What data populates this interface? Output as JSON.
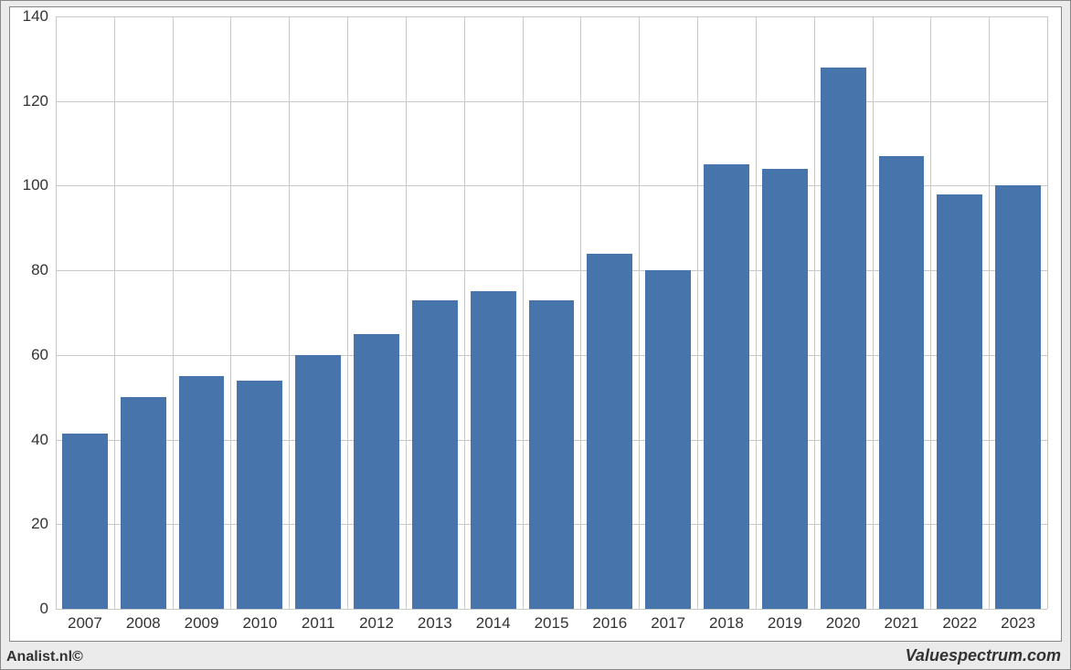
{
  "chart": {
    "type": "bar",
    "background_color": "#ebebeb",
    "plot_background_color": "#ffffff",
    "grid_color": "#c9c9c9",
    "border_color": "#888888",
    "bar_color": "#4674ab",
    "label_color": "#333333",
    "label_fontsize": 17,
    "ylim": [
      0,
      140
    ],
    "ytick_step": 20,
    "yticks": [
      0,
      20,
      40,
      60,
      80,
      100,
      120,
      140
    ],
    "categories": [
      "2007",
      "2008",
      "2009",
      "2010",
      "2011",
      "2012",
      "2013",
      "2014",
      "2015",
      "2016",
      "2017",
      "2018",
      "2019",
      "2020",
      "2021",
      "2022",
      "2023"
    ],
    "values": [
      41.5,
      50,
      55,
      54,
      60,
      65,
      73,
      75,
      73,
      84,
      80,
      105,
      104,
      128,
      107,
      98,
      100
    ],
    "bar_width_ratio": 0.78
  },
  "footer": {
    "left": "Analist.nl©",
    "right": "Valuespectrum.com"
  }
}
